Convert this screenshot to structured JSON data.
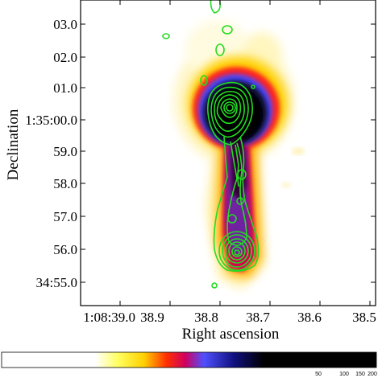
{
  "axes": {
    "xlabel": "Right ascension",
    "ylabel": "Declination",
    "y_ticks": [
      "03.0",
      "02.0",
      "01.0",
      "1:35:00.0",
      "59.0",
      "58.0",
      "57.0",
      "56.0",
      "34:55.0"
    ],
    "x_ticks": [
      "1:08:39.0",
      "38.9",
      "38.8",
      "38.7",
      "38.6",
      "38.5"
    ]
  },
  "colorbar": {
    "ticks": [
      "50",
      "100",
      "150",
      "200"
    ]
  },
  "colors": {
    "contour": "#22dd22",
    "background": "#ffffff",
    "colormap": [
      "#ffffff",
      "#ffffe0",
      "#ffe020",
      "#ff8800",
      "#ff1010",
      "#c0004a",
      "#4040ff",
      "#1010a0",
      "#000000"
    ]
  }
}
